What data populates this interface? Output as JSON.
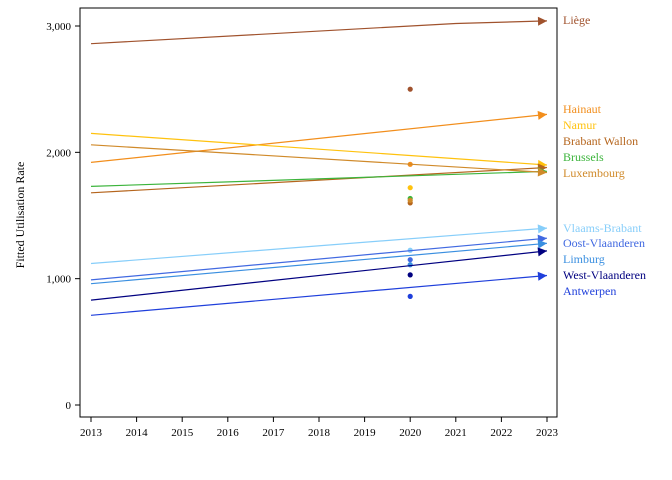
{
  "chart_data": {
    "type": "line",
    "xlabel": "",
    "ylabel": "Fitted Utilisation Rate",
    "xlim": [
      2013,
      2023
    ],
    "ylim": [
      0,
      3000
    ],
    "xticks": [
      2013,
      2014,
      2015,
      2016,
      2017,
      2018,
      2019,
      2020,
      2021,
      2022,
      2023
    ],
    "yticks": [
      0,
      1000,
      2000,
      3000
    ],
    "ytick_labels": [
      "0",
      "1,000",
      "2,000",
      "3,000"
    ],
    "grid": false,
    "legend": "labels at right end of lines",
    "series": [
      {
        "name": "Liège",
        "color": "#A0522D",
        "x": [
          2013,
          2021,
          2023
        ],
        "y": [
          2860,
          3020,
          3040
        ],
        "point_2020": 2500
      },
      {
        "name": "Hainaut",
        "color": "#F28E1C",
        "x": [
          2013,
          2023
        ],
        "y": [
          1920,
          2300
        ],
        "point_2020": 1905
      },
      {
        "name": "Namur",
        "color": "#FFC20E",
        "x": [
          2013,
          2023
        ],
        "y": [
          2150,
          1900
        ],
        "point_2020": 1720
      },
      {
        "name": "Brabant Wallon",
        "color": "#B5651D",
        "x": [
          2013,
          2023
        ],
        "y": [
          1680,
          1880
        ],
        "point_2020": 1600
      },
      {
        "name": "Brussels",
        "color": "#3CB43C",
        "x": [
          2013,
          2023
        ],
        "y": [
          1730,
          1850
        ],
        "point_2020": 1635
      },
      {
        "name": "Luxembourg",
        "color": "#D08A2A",
        "x": [
          2013,
          2023
        ],
        "y": [
          2060,
          1840
        ],
        "point_2020": 1620
      },
      {
        "name": "Vlaams-Brabant",
        "color": "#87CEFA",
        "x": [
          2013,
          2023
        ],
        "y": [
          1120,
          1400
        ],
        "point_2020": 1225
      },
      {
        "name": "Oost-Vlaanderen",
        "color": "#4169E1",
        "x": [
          2013,
          2023
        ],
        "y": [
          990,
          1320
        ],
        "point_2020": 1150
      },
      {
        "name": "Limburg",
        "color": "#3A8FE0",
        "x": [
          2013,
          2023
        ],
        "y": [
          960,
          1280
        ],
        "point_2020": 1110
      },
      {
        "name": "West-Vlaanderen",
        "color": "#000080",
        "x": [
          2013,
          2023
        ],
        "y": [
          830,
          1220
        ],
        "point_2020": 1030
      },
      {
        "name": "Antwerpen",
        "color": "#1F3FDB",
        "x": [
          2013,
          2023
        ],
        "y": [
          710,
          1025
        ],
        "point_2020": 860
      }
    ]
  }
}
